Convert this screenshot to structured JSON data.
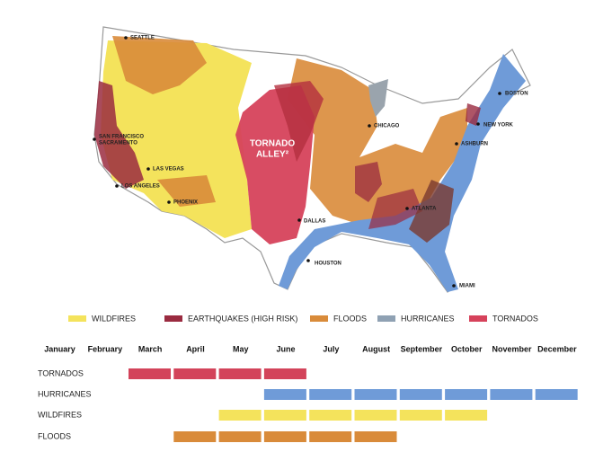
{
  "map": {
    "cities": [
      "SEATTLE",
      "SAN FRANCISCO",
      "SACRAMENTO",
      "LAS VEGAS",
      "LOS ANGELES",
      "PHOENIX",
      "DALLAS",
      "HOUSTON",
      "CHICAGO",
      "BOSTON",
      "NEW YORK",
      "ASHBURN",
      "ATLANTA",
      "MIAMI"
    ],
    "region_label": [
      "TORNADO",
      "ALLEY²"
    ]
  },
  "legend": [
    {
      "label": "WILDFIRES",
      "color": "#f4e35c"
    },
    {
      "label": "EARTHQUAKES (HIGH RISK)",
      "color": "#9a2b40"
    },
    {
      "label": "FLOODS",
      "color": "#d98b3a"
    },
    {
      "label": "HURRICANES",
      "color": "#8fa1b3"
    },
    {
      "label": "TORNADOS",
      "color": "#d6425b"
    }
  ],
  "calendar": {
    "months": [
      "January",
      "February",
      "March",
      "April",
      "May",
      "June",
      "July",
      "August",
      "September",
      "October",
      "November",
      "December"
    ],
    "rows": [
      {
        "label": "TORNADOS",
        "color": "#d3435a",
        "active": [
          false,
          false,
          true,
          true,
          true,
          true,
          false,
          false,
          false,
          false,
          false,
          false
        ]
      },
      {
        "label": "HURRICANES",
        "color": "#6f9bd8",
        "active": [
          false,
          false,
          false,
          false,
          false,
          true,
          true,
          true,
          true,
          true,
          true,
          true
        ]
      },
      {
        "label": "WILDFIRES",
        "color": "#f4e35c",
        "active": [
          false,
          false,
          false,
          false,
          true,
          true,
          true,
          true,
          true,
          true,
          false,
          false
        ]
      },
      {
        "label": "FLOODS",
        "color": "#d98b3a",
        "active": [
          false,
          false,
          false,
          true,
          true,
          true,
          true,
          true,
          false,
          false,
          false,
          false
        ]
      }
    ]
  }
}
